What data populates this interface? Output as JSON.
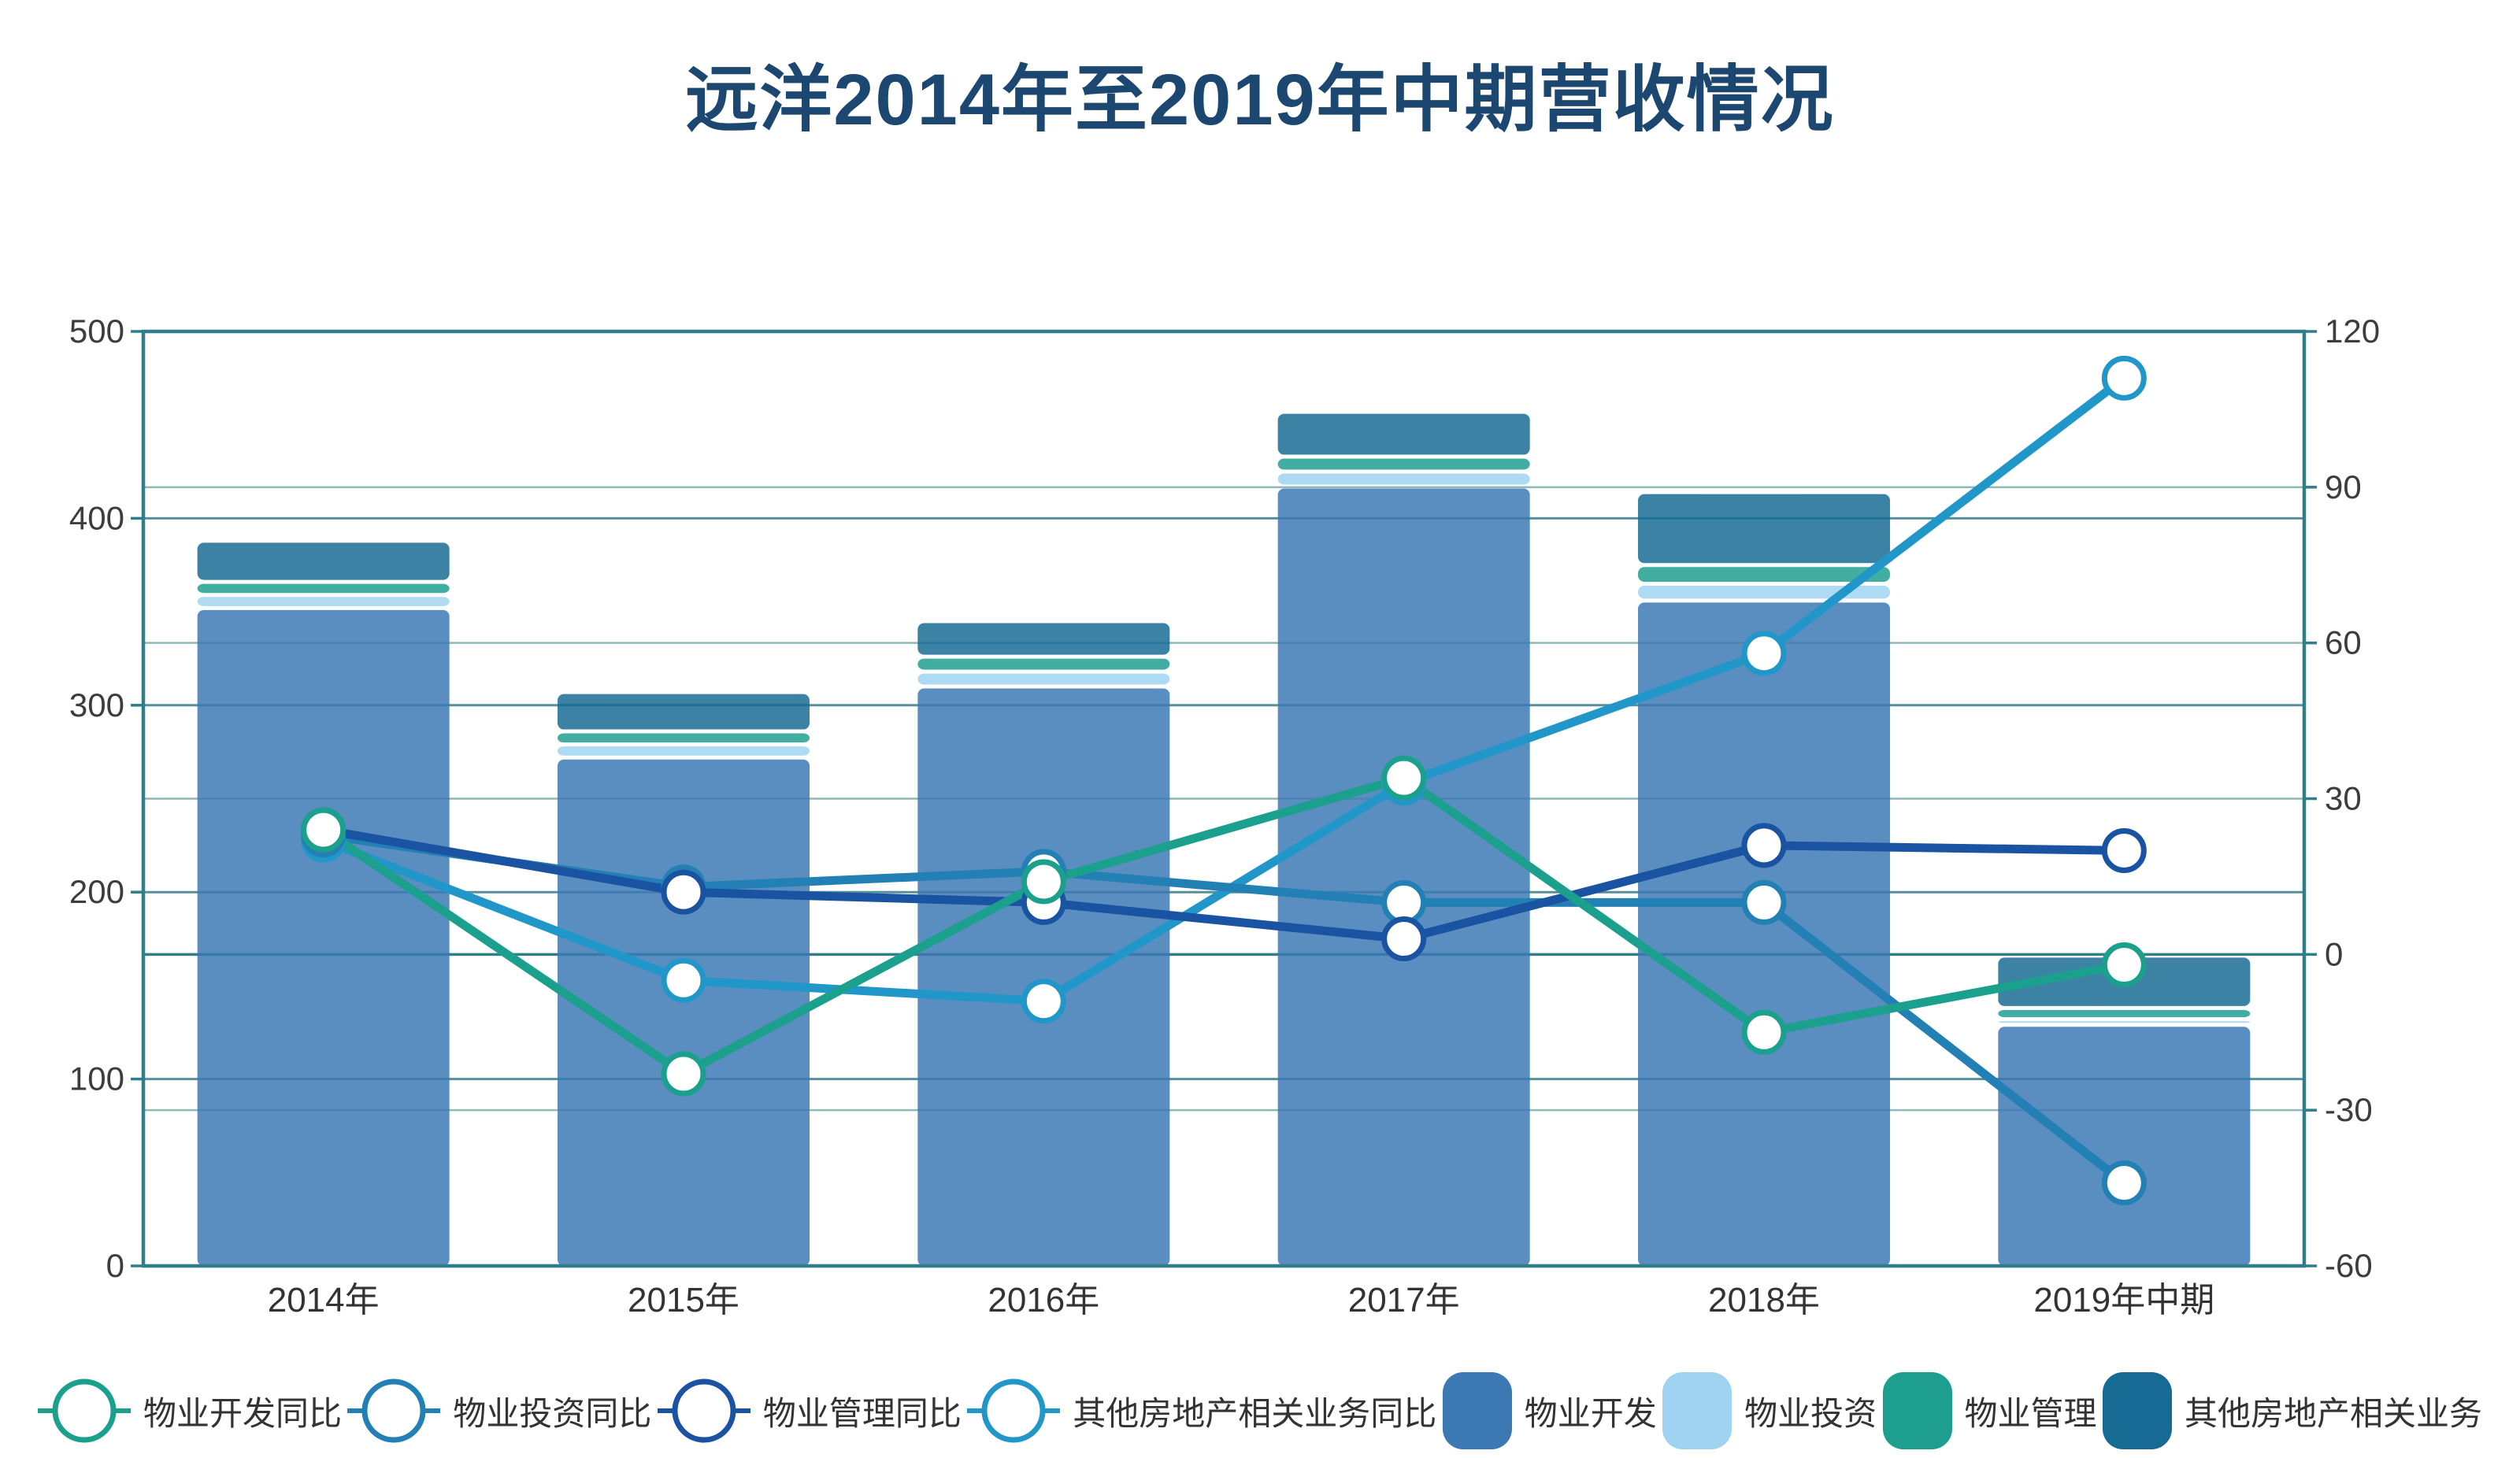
{
  "title": "远洋2014年至2019年中期营收情况",
  "chart_data": {
    "type": "bar-line-combo",
    "title": "远洋2014年至2019年中期营收情况",
    "categories": [
      "2014年",
      "2015年",
      "2016年",
      "2017年",
      "2018年",
      "2019年中期"
    ],
    "left_axis": {
      "min": 0,
      "max": 500,
      "ticks": [
        0,
        100,
        200,
        300,
        400,
        500
      ]
    },
    "right_axis": {
      "min": -60,
      "max": 120,
      "ticks": [
        -60,
        -30,
        0,
        30,
        60,
        90,
        120
      ]
    },
    "bar_totals": [
      388,
      307,
      345,
      457,
      414,
      166
    ],
    "bar_series": [
      {
        "name": "物业开发",
        "color": "#3C78B4",
        "values": [
          352,
          272,
          310,
          417,
          356,
          129
        ]
      },
      {
        "name": "物业投资",
        "color": "#9FD3F1",
        "values": [
          7,
          7,
          8,
          8,
          9,
          3
        ]
      },
      {
        "name": "物业管理",
        "color": "#1D9E8F",
        "values": [
          7,
          7,
          8,
          8,
          10,
          6
        ]
      },
      {
        "name": "其他房地产相关业务",
        "color": "#166A94",
        "values": [
          22,
          21,
          19,
          24,
          39,
          28
        ]
      }
    ],
    "line_series": [
      {
        "name": "物业开发同比",
        "color": "#1CA08E",
        "values": [
          24,
          -23,
          14,
          34,
          -15,
          -2
        ]
      },
      {
        "name": "物业投资同比",
        "color": "#2380B5",
        "values": [
          23,
          13,
          16,
          10,
          10,
          -44
        ]
      },
      {
        "name": "物业管理同比",
        "color": "#1A53A1",
        "values": [
          24,
          12,
          10,
          3,
          21,
          20
        ]
      },
      {
        "name": "其他房地产相关业务同比",
        "color": "#2197C9",
        "values": [
          22,
          -5,
          -9,
          33,
          58,
          111
        ]
      }
    ],
    "legend_position": "bottom",
    "grid": true,
    "style": {
      "axis_color": "#2F7E8A",
      "grid_left_color": "#55909B",
      "grid_right_color": "#8FB7B7",
      "zero_line_color": "#2F7E8A",
      "tick_text_color": "#3D3D3D",
      "bar_opacity": 0.84,
      "title_color": "#1C4770"
    }
  }
}
